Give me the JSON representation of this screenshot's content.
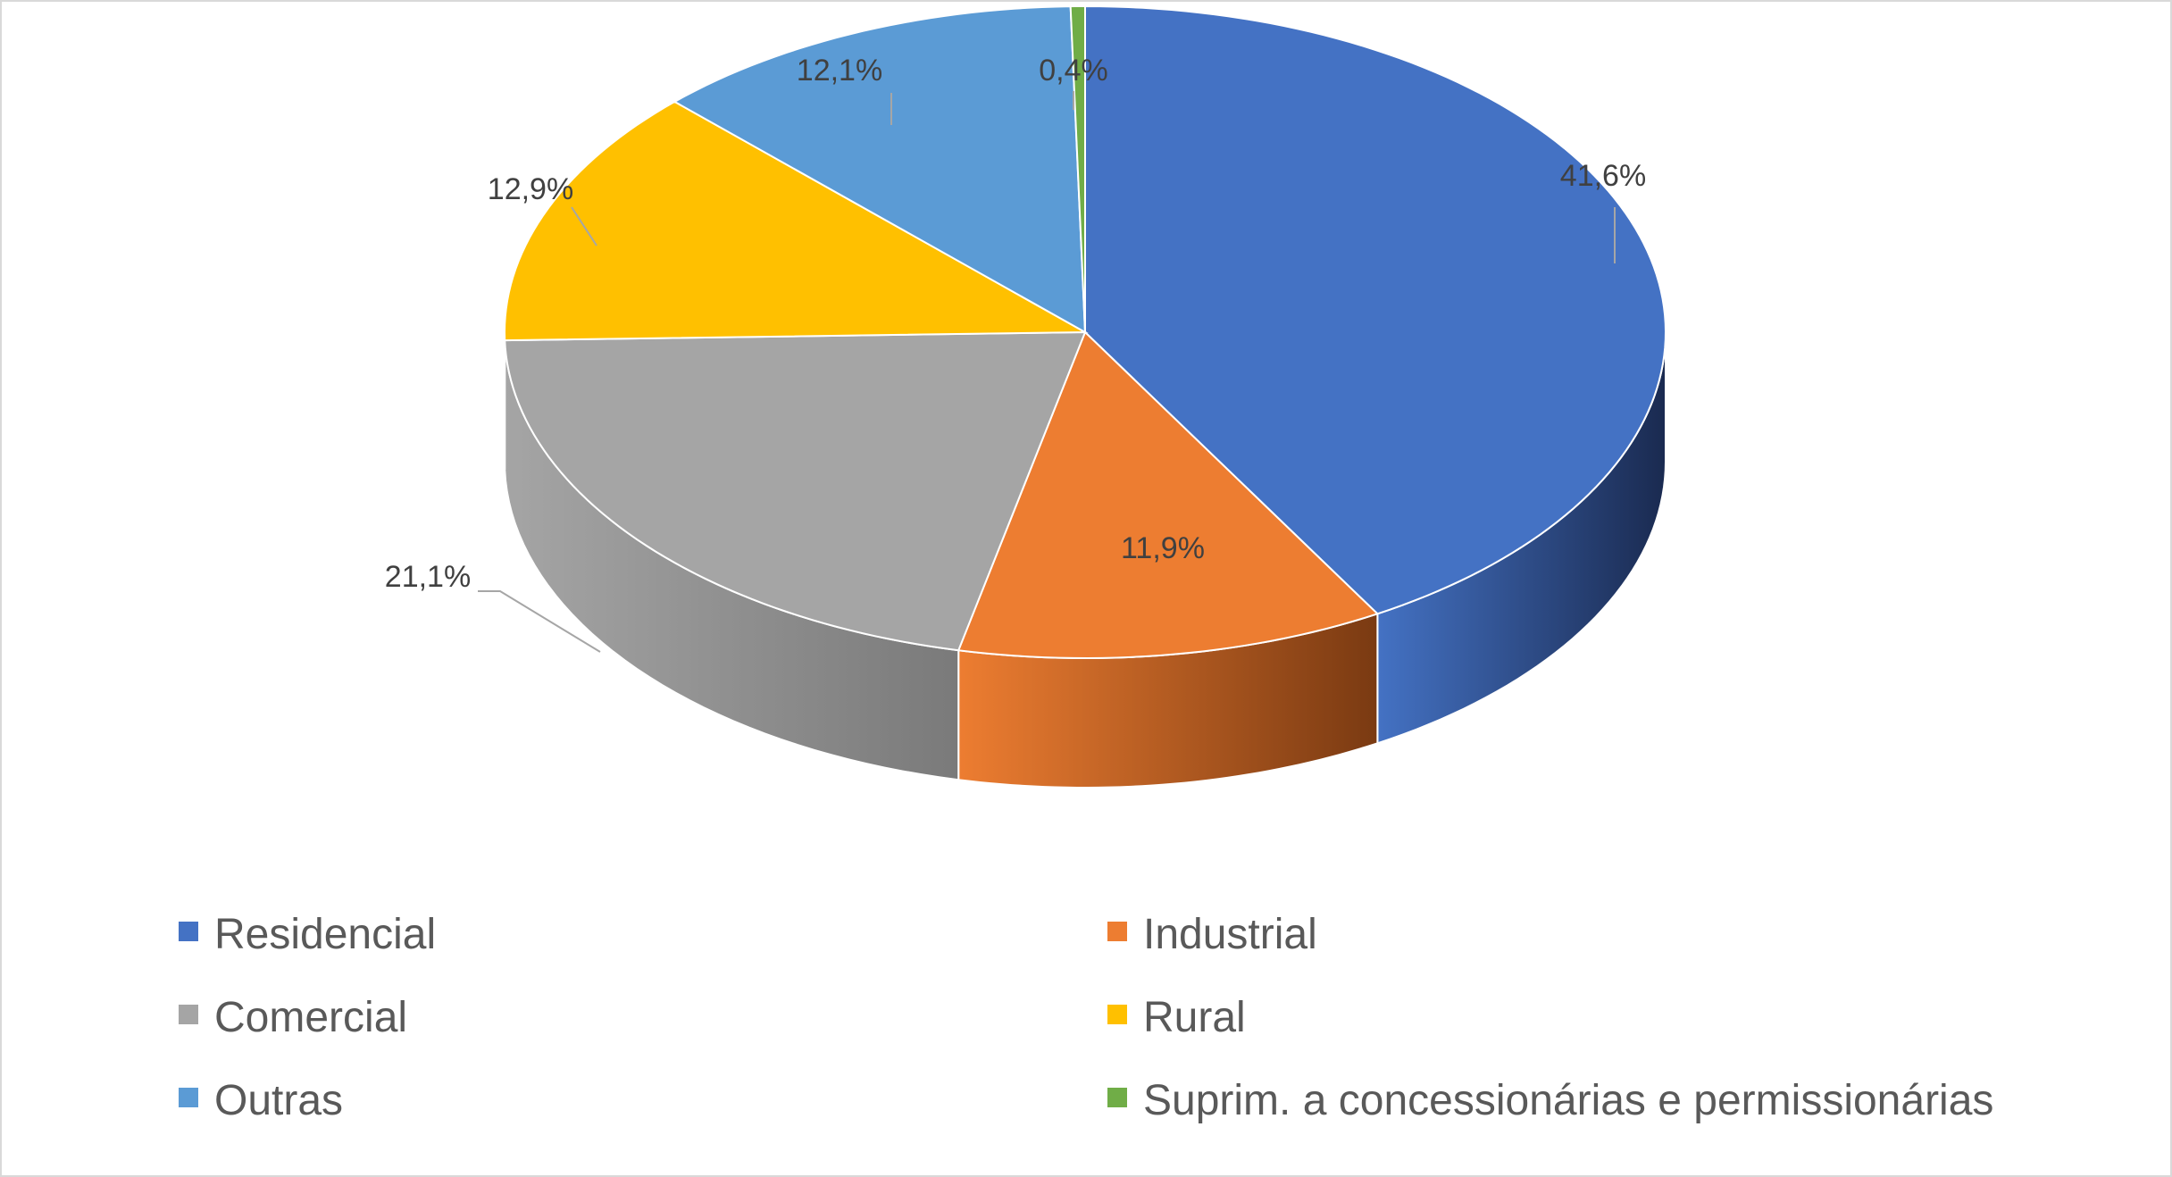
{
  "chart_data": {
    "type": "pie",
    "style": "3d",
    "title": "",
    "legend_position": "bottom",
    "label_format": "percent-comma",
    "slices": [
      {
        "name": "Residencial",
        "value": 41.6,
        "label": "41,6%",
        "color": "#4472c4",
        "side_color": "#1a2a50"
      },
      {
        "name": "Industrial",
        "value": 11.9,
        "label": "11,9%",
        "color": "#ed7d31",
        "side_color": "#7a3a12"
      },
      {
        "name": "Comercial",
        "value": 21.1,
        "label": "21,1%",
        "color": "#a5a5a5",
        "side_color": "#7a7a7a"
      },
      {
        "name": "Rural",
        "value": 12.9,
        "label": "12,9%",
        "color": "#ffc000",
        "side_color": "#8a6800"
      },
      {
        "name": "Outras",
        "value": 12.1,
        "label": "12,1%",
        "color": "#5b9bd5",
        "side_color": "#2a4f72"
      },
      {
        "name": "Suprim. a concessionárias e permissionárias",
        "value": 0.4,
        "label": "0,4%",
        "color": "#70ad47",
        "side_color": "#3a5e22"
      }
    ]
  }
}
